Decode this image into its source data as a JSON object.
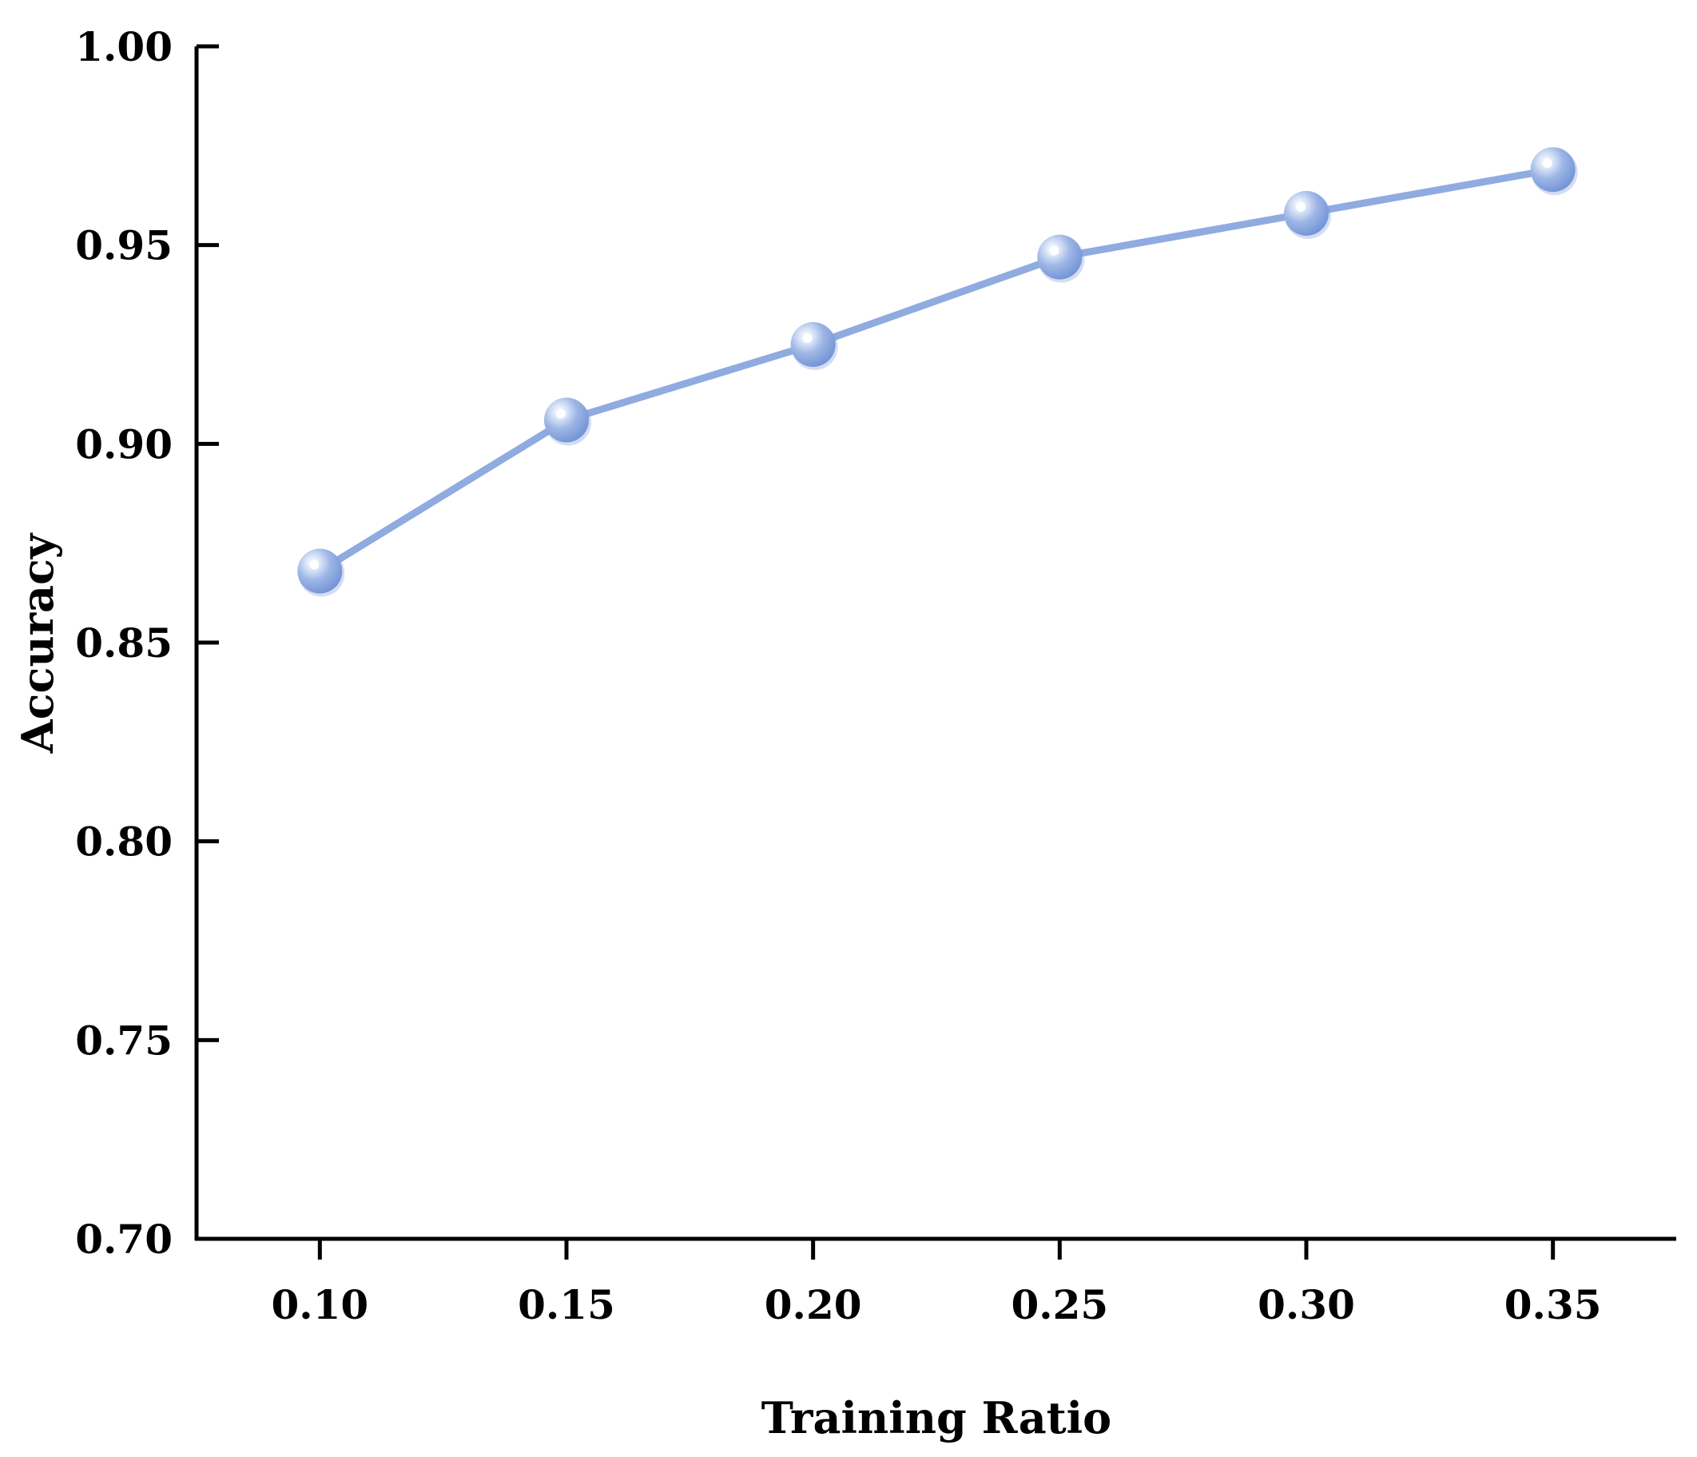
{
  "chart_data": {
    "type": "line",
    "xlabel": "Training Ratio",
    "ylabel": "Accuracy",
    "x": [
      0.1,
      0.15,
      0.2,
      0.25,
      0.3,
      0.35
    ],
    "x_tick_labels": [
      "0.10",
      "0.15",
      "0.20",
      "0.25",
      "0.30",
      "0.35"
    ],
    "y_ticks": [
      0.7,
      0.75,
      0.8,
      0.85,
      0.9,
      0.95,
      1.0
    ],
    "y_tick_labels": [
      "0.70",
      "0.75",
      "0.80",
      "0.85",
      "0.90",
      "0.95",
      "1.00"
    ],
    "ylim": [
      0.7,
      1.0
    ],
    "xlim": [
      0.075,
      0.375
    ],
    "grid": false,
    "legend": "none",
    "series": [
      {
        "values": [
          0.868,
          0.906,
          0.925,
          0.947,
          0.958,
          0.969
        ],
        "color": "#8FABE0",
        "marker": "sphere"
      }
    ]
  },
  "colors": {
    "axis": "#000000",
    "line": "#8FABE0",
    "marker_dark": "#7F9FDA",
    "marker_light": "#FFFFFF"
  }
}
